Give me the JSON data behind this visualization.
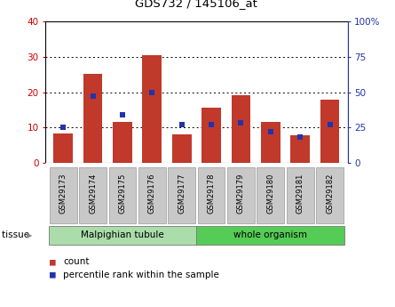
{
  "title": "GDS732 / 145106_at",
  "categories": [
    "GSM29173",
    "GSM29174",
    "GSM29175",
    "GSM29176",
    "GSM29177",
    "GSM29178",
    "GSM29179",
    "GSM29180",
    "GSM29181",
    "GSM29182"
  ],
  "count_values": [
    8.2,
    25.2,
    11.5,
    30.5,
    8.1,
    15.5,
    19.0,
    11.5,
    7.8,
    17.8
  ],
  "percentile_values": [
    25,
    47,
    34,
    50,
    27,
    27,
    28,
    22,
    18,
    27
  ],
  "left_ylim": [
    0,
    40
  ],
  "right_ylim": [
    0,
    100
  ],
  "left_yticks": [
    0,
    10,
    20,
    30,
    40
  ],
  "right_yticks": [
    0,
    25,
    50,
    75,
    100
  ],
  "right_yticklabels": [
    "0",
    "25",
    "50",
    "75",
    "100%"
  ],
  "bar_color": "#C0392B",
  "dot_color": "#2233AA",
  "grid_color": "#000000",
  "tissue_groups": [
    {
      "label": "Malpighian tubule",
      "start": 0,
      "end": 5
    },
    {
      "label": "whole organism",
      "start": 5,
      "end": 10
    }
  ],
  "legend_items": [
    {
      "color": "#C0392B",
      "label": "count"
    },
    {
      "color": "#2233AA",
      "label": "percentile rank within the sample"
    }
  ],
  "left_tick_color": "#CC0000",
  "right_tick_color": "#2233AA",
  "tick_bg_color": "#C8C8C8",
  "malpighian_color": "#AADDAA",
  "whole_organism_color": "#55CC55",
  "outer_border_color": "#888888"
}
